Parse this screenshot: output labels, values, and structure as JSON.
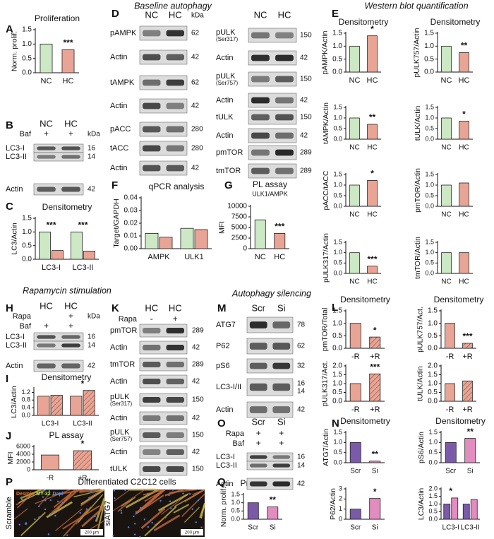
{
  "letters": [
    "A",
    "B",
    "C",
    "D",
    "E",
    "F",
    "G",
    "H",
    "I",
    "J",
    "K",
    "L",
    "M",
    "N",
    "O",
    "P",
    "Q"
  ],
  "headers": [
    "Baseline autophagy",
    "Western blot quantification",
    "Rapamycin stimulation",
    "Autophagy silencing"
  ],
  "chart_data": [
    {
      "type": "bar",
      "title": "Proliferation",
      "ylabel": "Norm. prolif.",
      "categories": [
        "NC",
        "HC"
      ],
      "values": [
        1.0,
        0.8
      ],
      "colors": [
        "#cde8c4",
        "#e8a595"
      ],
      "sig": [
        null,
        "***"
      ],
      "ylim": [
        0,
        1.5
      ],
      "yticks": [
        {
          "value": 0,
          "label": "0.0"
        },
        0.5,
        {
          "value": 1,
          "label": "1.0"
        },
        1.5
      ]
    },
    {
      "type": "bar",
      "title": "Densitometry",
      "ylabel": "LC3/Actin",
      "categories": [
        "LC3-I",
        "LC3-II"
      ],
      "series": [
        {
          "color": "#cde8c4",
          "values": [
            1.0,
            1.0
          ]
        },
        {
          "color": "#e8a595",
          "values": [
            0.32,
            0.3
          ]
        }
      ],
      "sig": [
        "***",
        "***"
      ],
      "ylim": [
        0,
        1.5
      ],
      "yticks": [
        {
          "value": 0,
          "label": "0.0"
        },
        0.5,
        {
          "value": 1,
          "label": "1.0"
        },
        1.5
      ]
    },
    {
      "type": "bar",
      "title": "qPCR analysis",
      "ylabel": "Target/GAPDH",
      "categories": [
        "AMPK",
        "ULK1"
      ],
      "series": [
        {
          "color": "#cde8c4",
          "values": [
            0.012,
            0.016
          ]
        },
        {
          "color": "#e8a595",
          "values": [
            0.009,
            0.015
          ]
        }
      ],
      "ylim": [
        0,
        0.04
      ],
      "yticks": [
        {
          "value": 0,
          "label": "0.00"
        },
        0.01,
        0.02,
        0.03,
        0.04
      ]
    },
    {
      "type": "bar",
      "title": "PL assay",
      "subtitle": "ULK1/AMPK",
      "ylabel": "MFI",
      "categories": [
        "NC",
        "HC"
      ],
      "values": [
        6800,
        3600
      ],
      "colors": [
        "#cde8c4",
        "#e8a595"
      ],
      "sig": [
        null,
        "***"
      ],
      "ylim": [
        0,
        10000
      ],
      "yticks": [
        0,
        2500,
        5000,
        7500,
        10000
      ]
    },
    {
      "type": "bar",
      "title": "Densitometry",
      "ylabel": "pAMPK/Actin",
      "categories": [
        "NC",
        "HC"
      ],
      "values": [
        1.0,
        1.4
      ],
      "colors": [
        "#cde8c4",
        "#e8a595"
      ],
      "sig": [
        null,
        "*"
      ],
      "ylim": [
        0,
        1.5
      ],
      "yticks": [
        {
          "value": 0,
          "label": "0.0"
        },
        0.5,
        {
          "value": 1,
          "label": "1.0"
        },
        1.5
      ]
    },
    {
      "type": "bar",
      "title": "Densitometry",
      "ylabel": "pULK757/Actin",
      "categories": [
        "NC",
        "HC"
      ],
      "values": [
        1.0,
        0.75
      ],
      "colors": [
        "#cde8c4",
        "#e8a595"
      ],
      "sig": [
        null,
        "**"
      ],
      "ylim": [
        0,
        1.5
      ],
      "yticks": [
        {
          "value": 0,
          "label": "0.0"
        },
        0.5,
        {
          "value": 1,
          "label": "1.0"
        },
        1.5
      ]
    },
    {
      "type": "bar",
      "ylabel": "tAMPK/Actin",
      "categories": [
        "NC",
        "HC"
      ],
      "values": [
        1.0,
        0.7
      ],
      "colors": [
        "#cde8c4",
        "#e8a595"
      ],
      "sig": [
        null,
        "**"
      ],
      "ylim": [
        0,
        1.5
      ],
      "yticks": [
        {
          "value": 0,
          "label": "0.0"
        },
        0.5,
        {
          "value": 1,
          "label": "1.0"
        },
        1.5
      ]
    },
    {
      "type": "bar",
      "ylabel": "tULK/Actin",
      "categories": [
        "NC",
        "HC"
      ],
      "values": [
        1.0,
        0.85
      ],
      "colors": [
        "#cde8c4",
        "#e8a595"
      ],
      "sig": [
        null,
        "*"
      ],
      "ylim": [
        0,
        1.5
      ],
      "yticks": [
        {
          "value": 0,
          "label": "0.0"
        },
        0.5,
        {
          "value": 1,
          "label": "1.0"
        },
        1.5
      ]
    },
    {
      "type": "bar",
      "ylabel": "pACC/tACC",
      "categories": [
        "NC",
        "HC"
      ],
      "values": [
        1.0,
        1.22
      ],
      "colors": [
        "#cde8c4",
        "#e8a595"
      ],
      "sig": [
        null,
        "*"
      ],
      "ylim": [
        0,
        1.5
      ],
      "yticks": [
        {
          "value": 0,
          "label": "0.0"
        },
        0.5,
        {
          "value": 1,
          "label": "1.0"
        },
        1.5
      ]
    },
    {
      "type": "bar",
      "ylabel": "pmTOR/Actin",
      "categories": [
        "NC",
        "HC"
      ],
      "values": [
        1.0,
        1.1
      ],
      "colors": [
        "#cde8c4",
        "#e8a595"
      ],
      "ylim": [
        0,
        1.5
      ],
      "yticks": [
        {
          "value": 0,
          "label": "0.0"
        },
        0.5,
        {
          "value": 1,
          "label": "1.0"
        },
        1.5
      ]
    },
    {
      "type": "bar",
      "ylabel": "pULK317/Actin",
      "categories": [
        "NC",
        "HC"
      ],
      "values": [
        1.0,
        0.35
      ],
      "colors": [
        "#cde8c4",
        "#e8a595"
      ],
      "sig": [
        null,
        "***"
      ],
      "ylim": [
        0,
        1.5
      ],
      "yticks": [
        {
          "value": 0,
          "label": "0.0"
        },
        0.5,
        {
          "value": 1,
          "label": "1.0"
        },
        1.5
      ]
    },
    {
      "type": "bar",
      "ylabel": "tmTOR/Actin",
      "categories": [
        "NC",
        "HC"
      ],
      "values": [
        1.0,
        1.0
      ],
      "colors": [
        "#cde8c4",
        "#e8a595"
      ],
      "ylim": [
        0,
        1.5
      ],
      "yticks": [
        {
          "value": 0,
          "label": "0.0"
        },
        0.5,
        {
          "value": 1,
          "label": "1.0"
        },
        1.5
      ]
    },
    {
      "type": "bar",
      "title": "Densitometry",
      "ylabel": "LC3/Actin",
      "categories": [
        "LC3-I",
        "LC3-II"
      ],
      "series": [
        {
          "color": "#e8a595",
          "values": [
            1.0,
            1.0
          ]
        },
        {
          "color": "#e8a595",
          "hatch": true,
          "values": [
            1.05,
            1.3
          ]
        }
      ],
      "sig": [
        null,
        "*"
      ],
      "ylim": [
        0,
        1.4
      ],
      "yticks": [
        {
          "value": 0,
          "label": "0.0"
        },
        0.4,
        0.8,
        1.2
      ]
    },
    {
      "type": "bar",
      "title": "PL assay",
      "ylabel": "MFI",
      "categories": [
        "-R",
        "+R"
      ],
      "values": [
        3800,
        4900
      ],
      "colors": [
        "#e8a595",
        "#e8a595"
      ],
      "hatch": [
        false,
        true
      ],
      "sig": [
        null,
        "*"
      ],
      "ylim": [
        0,
        6000
      ],
      "yticks": [
        0,
        2000,
        4000,
        6000
      ]
    },
    {
      "type": "bar",
      "title": "Densitometry",
      "ylabel": "pmTOR/Total",
      "categories": [
        "-R",
        "+R"
      ],
      "values": [
        1.0,
        0.45
      ],
      "colors": [
        "#e8a595",
        "#e8a595"
      ],
      "hatch": [
        false,
        true
      ],
      "sig": [
        null,
        "*"
      ],
      "ylim": [
        0,
        1.5
      ],
      "yticks": [
        {
          "value": 0,
          "label": "0.0"
        },
        0.5,
        {
          "value": 1,
          "label": "1.0"
        },
        1.5
      ]
    },
    {
      "type": "bar",
      "title": "Densitometry",
      "ylabel": "pULK757/Act.",
      "categories": [
        "-R",
        "+R"
      ],
      "values": [
        1.0,
        0.2
      ],
      "colors": [
        "#e8a595",
        "#e8a595"
      ],
      "hatch": [
        false,
        true
      ],
      "sig": [
        null,
        "***"
      ],
      "ylim": [
        0,
        1.5
      ],
      "yticks": [
        {
          "value": 0,
          "label": "0.0"
        },
        0.5,
        {
          "value": 1,
          "label": "1.0"
        },
        1.5
      ]
    },
    {
      "type": "bar",
      "ylabel": "pULK317/Act.",
      "categories": [
        "-R",
        "+R"
      ],
      "values": [
        1.0,
        1.55
      ],
      "colors": [
        "#e8a595",
        "#e8a595"
      ],
      "hatch": [
        false,
        true
      ],
      "sig": [
        null,
        "***"
      ],
      "ylim": [
        0,
        2
      ],
      "yticks": [
        {
          "value": 0,
          "label": "0.0"
        },
        0.5,
        {
          "value": 1,
          "label": "1.0"
        },
        1.5,
        {
          "value": 2,
          "label": "2.0"
        }
      ]
    },
    {
      "type": "bar",
      "ylabel": "tULK/Actin",
      "categories": [
        "-R",
        "+R"
      ],
      "values": [
        1.0,
        1.15
      ],
      "colors": [
        "#e8a595",
        "#e8a595"
      ],
      "hatch": [
        false,
        true
      ],
      "ylim": [
        0,
        2
      ],
      "yticks": [
        {
          "value": 0,
          "label": "0.0"
        },
        0.5,
        {
          "value": 1,
          "label": "1.0"
        },
        1.5,
        {
          "value": 2,
          "label": "2.0"
        }
      ]
    },
    {
      "type": "bar",
      "title": "Densitometry",
      "ylabel": "ATG7/Actin",
      "categories": [
        "Scr",
        "Si"
      ],
      "values": [
        1.0,
        0.08
      ],
      "colors": [
        "#7b5ba8",
        "#e38cc0"
      ],
      "sig": [
        null,
        "**"
      ],
      "ylim": [
        0,
        1.5
      ],
      "yticks": [
        {
          "value": 0,
          "label": "0.0"
        },
        0.5,
        {
          "value": 1,
          "label": "1.0"
        },
        1.5
      ]
    },
    {
      "type": "bar",
      "title": "Densitometry",
      "ylabel": "pS6/Actin",
      "categories": [
        "Scr",
        "Si"
      ],
      "values": [
        1.0,
        1.2
      ],
      "colors": [
        "#7b5ba8",
        "#e38cc0"
      ],
      "sig": [
        null,
        "**"
      ],
      "ylim": [
        0,
        1.5
      ],
      "yticks": [
        {
          "value": 0,
          "label": "0.0"
        },
        0.5,
        {
          "value": 1,
          "label": "1.0"
        },
        1.5
      ]
    },
    {
      "type": "bar",
      "ylabel": "P62/Actin",
      "categories": [
        "Scr",
        "Si"
      ],
      "values": [
        1.0,
        2.05
      ],
      "colors": [
        "#7b5ba8",
        "#e38cc0"
      ],
      "sig": [
        null,
        "*"
      ],
      "ylim": [
        0,
        3
      ],
      "yticks": [
        0,
        1,
        2,
        3
      ]
    },
    {
      "type": "bar",
      "ylabel": "LC3/Actin",
      "categories": [
        "LC3-I",
        "LC3-II"
      ],
      "series": [
        {
          "color": "#7b5ba8",
          "values": [
            1.0,
            1.0
          ]
        },
        {
          "color": "#e38cc0",
          "values": [
            1.4,
            1.3
          ]
        }
      ],
      "sig": [
        "*",
        null
      ],
      "ylim": [
        0,
        2
      ],
      "yticks": [
        {
          "value": 0,
          "label": "0.0"
        },
        0.5,
        {
          "value": 1,
          "label": "1.0"
        },
        1.5,
        {
          "value": 2,
          "label": "2.0"
        }
      ]
    },
    {
      "type": "bar",
      "title": "Proliferation",
      "ylabel": "Norm. prolif.",
      "categories": [
        "Scr",
        "Si"
      ],
      "values": [
        1.0,
        0.75
      ],
      "colors": [
        "#7b5ba8",
        "#e38cc0"
      ],
      "sig": [
        null,
        "**"
      ],
      "ylim": [
        0,
        1.5
      ],
      "yticks": [
        {
          "value": 0,
          "label": "0.0"
        },
        0.5,
        {
          "value": 1,
          "label": "1.0"
        },
        1.5
      ]
    }
  ],
  "blots": [
    {
      "lanes": [
        "NC",
        "HC"
      ],
      "unit": "kDa",
      "treatments": [
        {
          "label": "Baf",
          "marks": [
            "+",
            "+"
          ]
        }
      ],
      "rows": [
        {
          "label": "LC3-I",
          "kda": 16
        },
        {
          "label": "LC3-II",
          "kda": 14
        },
        {
          "label": "Actin",
          "kda": 42
        }
      ]
    },
    {
      "lanes": [
        "NC",
        "HC"
      ],
      "unit": "kDa",
      "rows": [
        {
          "label": "pAMPK",
          "kda": 62
        },
        {
          "label": "Actin",
          "kda": 42
        },
        {
          "label": "tAMPK",
          "kda": 62
        },
        {
          "label": "Actin",
          "kda": 42
        },
        {
          "label": "pACC",
          "kda": 280
        },
        {
          "label": "tACC",
          "kda": 280
        },
        {
          "label": "Actin",
          "kda": 42
        }
      ]
    },
    {
      "lanes": [
        "NC",
        "HC"
      ],
      "rows": [
        {
          "label": "pULK",
          "sub": "(Ser317)",
          "kda": 150
        },
        {
          "label": "Actin",
          "kda": 42
        },
        {
          "label": "pULK",
          "sub": "(Ser757)",
          "kda": 150
        },
        {
          "label": "Actin",
          "kda": 42
        },
        {
          "label": "tULK",
          "kda": 150
        },
        {
          "label": "Actin",
          "kda": 42
        },
        {
          "label": "pmTOR",
          "kda": 289
        },
        {
          "label": "tmTOR",
          "kda": 289
        }
      ]
    },
    {
      "lanes": [
        "HC",
        "HC"
      ],
      "unit": "kDa",
      "treatments": [
        {
          "label": "Rapa",
          "marks": [
            null,
            "+"
          ]
        },
        {
          "label": "Baf",
          "marks": [
            "+",
            "+"
          ]
        }
      ],
      "rows": [
        {
          "label": "LC3-I",
          "kda": 16
        },
        {
          "label": "LC3-II",
          "kda": 14
        },
        {
          "label": "Actin",
          "kda": 42
        }
      ]
    },
    {
      "lanes": [
        "HC",
        "HC"
      ],
      "treatments": [
        {
          "label": "Rapa",
          "marks": [
            "-",
            "+"
          ]
        }
      ],
      "rows": [
        {
          "label": "pmTOR",
          "kda": 289
        },
        {
          "label": "Actin",
          "kda": 42
        },
        {
          "label": "tmTOR",
          "kda": 289
        },
        {
          "label": "Actin",
          "kda": 42
        },
        {
          "label": "pULK",
          "sub": "(Ser317)",
          "kda": 150
        },
        {
          "label": "Actin",
          "kda": 42
        },
        {
          "label": "pULK",
          "sub": "(Ser757)",
          "kda": 150
        },
        {
          "label": "Actin",
          "kda": 42
        },
        {
          "label": "tULK",
          "kda": 150
        }
      ]
    },
    {
      "lanes": [
        "Scr",
        "Si"
      ],
      "rows": [
        {
          "label": "ATG7",
          "kda": 78
        },
        {
          "label": "P62",
          "kda": 62
        },
        {
          "label": "pS6",
          "kda": 32
        },
        {
          "label": "LC3-I/II",
          "kda": [
            16,
            14
          ]
        },
        {
          "label": "Actin",
          "kda": 42
        }
      ]
    },
    {
      "lanes": [
        "Scr",
        "Si"
      ],
      "treatments": [
        {
          "label": "Rapa",
          "marks": [
            "+",
            "+"
          ]
        },
        {
          "label": "Baf",
          "marks": [
            "+",
            "+"
          ]
        }
      ],
      "rows": [
        {
          "label": "LC3-I",
          "kda": 16
        },
        {
          "label": "LC3-II",
          "kda": 14
        },
        {
          "label": "Actin",
          "kda": 42
        }
      ]
    }
  ],
  "image_panel": {
    "title": "Differentiated C2C12 cells",
    "stains": [
      "Desmin",
      "MY-32",
      "Dapi"
    ],
    "conditions": [
      "Scramble",
      "siATG7"
    ],
    "scale": "200 µm"
  }
}
